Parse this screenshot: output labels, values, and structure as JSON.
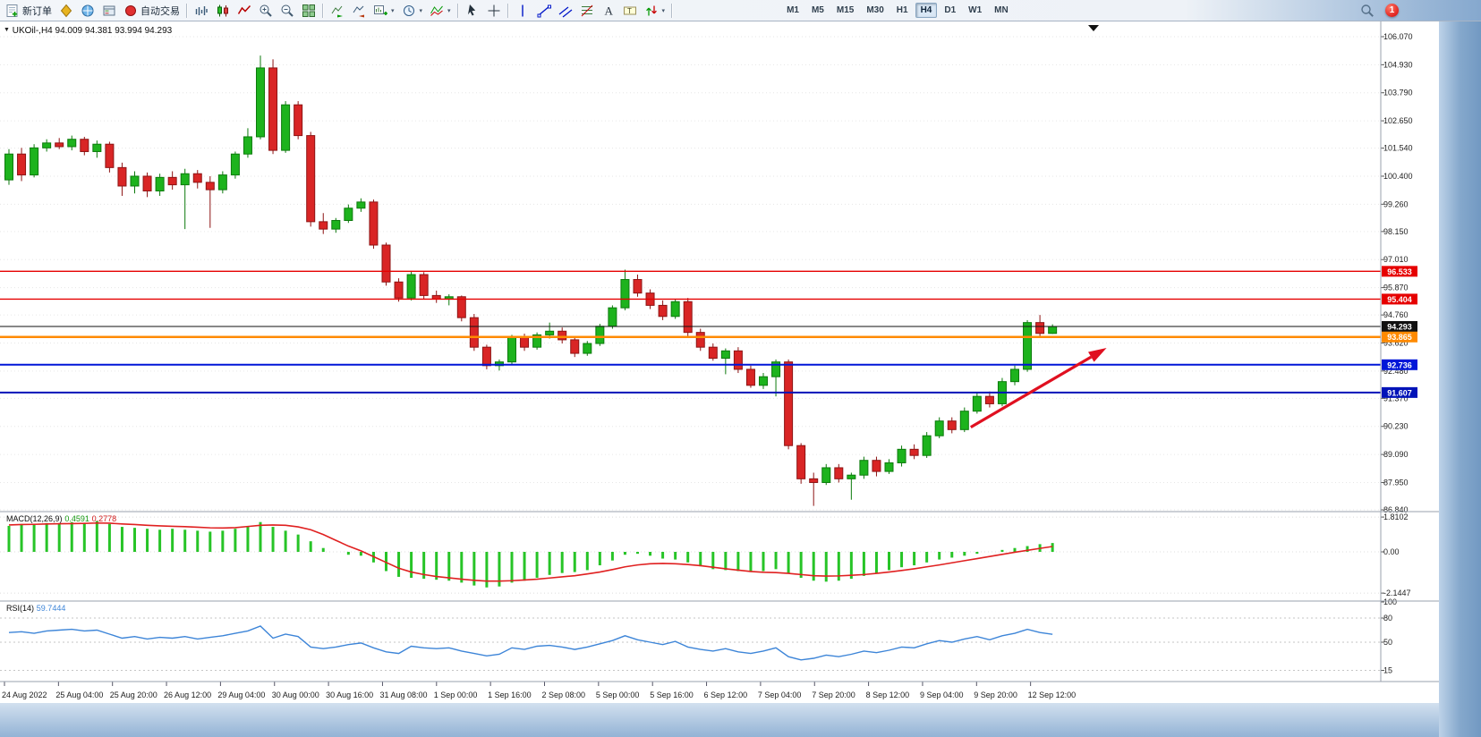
{
  "toolbar": {
    "new_order_label": "新订单",
    "auto_trading_label": "自动交易",
    "timeframes": [
      "M1",
      "M5",
      "M15",
      "M30",
      "H1",
      "H4",
      "D1",
      "W1",
      "MN"
    ],
    "active_timeframe": "H4",
    "notification_count": "1"
  },
  "chart": {
    "collapse_arrow": "▼",
    "symbol_period": "UKOil-,H4",
    "ohlc_text": "94.009 94.381 93.994 94.293"
  },
  "chart_data": {
    "type": "candlestick",
    "symbol": "UKOil-",
    "period": "H4",
    "title": "UKOil-,H4",
    "current_bar": {
      "open": 94.009,
      "high": 94.381,
      "low": 93.994,
      "close": 94.293
    },
    "price_range": [
      86.84,
      106.07
    ],
    "price_axis_labels": [
      "106.070",
      "104.930",
      "103.790",
      "102.650",
      "101.540",
      "100.400",
      "99.260",
      "98.150",
      "97.010",
      "95.870",
      "94.760",
      "93.620",
      "92.480",
      "91.370",
      "90.230",
      "89.090",
      "87.950",
      "86.840"
    ],
    "candles": [
      [
        100.25,
        101.5,
        100.05,
        101.3
      ],
      [
        101.3,
        101.55,
        100.2,
        100.45
      ],
      [
        100.45,
        101.7,
        100.35,
        101.55
      ],
      [
        101.55,
        101.9,
        101.4,
        101.75
      ],
      [
        101.75,
        101.95,
        101.5,
        101.6
      ],
      [
        101.6,
        102.05,
        101.45,
        101.9
      ],
      [
        101.9,
        102.0,
        101.25,
        101.4
      ],
      [
        101.4,
        101.85,
        101.15,
        101.7
      ],
      [
        101.7,
        101.8,
        100.55,
        100.75
      ],
      [
        100.75,
        100.95,
        99.6,
        100.0
      ],
      [
        100.0,
        100.6,
        99.7,
        100.4
      ],
      [
        100.4,
        100.55,
        99.55,
        99.8
      ],
      [
        99.8,
        100.5,
        99.6,
        100.35
      ],
      [
        100.35,
        100.6,
        99.85,
        100.05
      ],
      [
        100.05,
        100.7,
        98.25,
        100.5
      ],
      [
        100.5,
        100.65,
        99.9,
        100.15
      ],
      [
        100.15,
        100.4,
        98.3,
        99.85
      ],
      [
        99.85,
        100.6,
        99.7,
        100.45
      ],
      [
        100.45,
        101.4,
        100.3,
        101.3
      ],
      [
        101.3,
        102.35,
        101.15,
        102.0
      ],
      [
        102.0,
        105.3,
        101.9,
        104.8
      ],
      [
        104.8,
        105.15,
        101.3,
        101.45
      ],
      [
        101.45,
        103.45,
        101.35,
        103.3
      ],
      [
        103.3,
        103.45,
        101.9,
        102.05
      ],
      [
        102.05,
        102.2,
        98.35,
        98.55
      ],
      [
        98.55,
        98.9,
        98.05,
        98.25
      ],
      [
        98.25,
        98.7,
        98.1,
        98.6
      ],
      [
        98.6,
        99.25,
        98.5,
        99.1
      ],
      [
        99.1,
        99.5,
        98.95,
        99.35
      ],
      [
        99.35,
        99.45,
        97.45,
        97.6
      ],
      [
        97.6,
        97.7,
        95.95,
        96.1
      ],
      [
        96.1,
        96.25,
        95.3,
        95.45
      ],
      [
        95.45,
        96.55,
        95.35,
        96.4
      ],
      [
        96.4,
        96.5,
        95.4,
        95.55
      ],
      [
        95.55,
        95.75,
        95.25,
        95.4
      ],
      [
        95.4,
        95.6,
        95.15,
        95.5
      ],
      [
        95.5,
        95.55,
        94.5,
        94.65
      ],
      [
        94.65,
        94.8,
        93.3,
        93.45
      ],
      [
        93.45,
        93.55,
        92.55,
        92.7
      ],
      [
        92.7,
        92.95,
        92.5,
        92.85
      ],
      [
        92.85,
        93.95,
        92.75,
        93.85
      ],
      [
        93.85,
        94.0,
        93.3,
        93.45
      ],
      [
        93.45,
        94.05,
        93.35,
        93.95
      ],
      [
        93.95,
        94.45,
        93.8,
        94.1
      ],
      [
        94.1,
        94.25,
        93.6,
        93.75
      ],
      [
        93.75,
        93.9,
        93.05,
        93.2
      ],
      [
        93.2,
        93.7,
        93.1,
        93.6
      ],
      [
        93.6,
        94.4,
        93.5,
        94.3
      ],
      [
        94.3,
        95.15,
        94.2,
        95.05
      ],
      [
        95.05,
        96.6,
        94.95,
        96.2
      ],
      [
        96.2,
        96.4,
        95.5,
        95.65
      ],
      [
        95.65,
        95.8,
        95.0,
        95.15
      ],
      [
        95.15,
        95.35,
        94.55,
        94.7
      ],
      [
        94.7,
        95.4,
        94.6,
        95.3
      ],
      [
        95.3,
        95.45,
        93.9,
        94.05
      ],
      [
        94.05,
        94.2,
        93.3,
        93.45
      ],
      [
        93.45,
        93.6,
        92.9,
        93.0
      ],
      [
        93.0,
        93.4,
        92.35,
        93.3
      ],
      [
        93.3,
        93.45,
        92.4,
        92.55
      ],
      [
        92.55,
        92.7,
        91.8,
        91.9
      ],
      [
        91.9,
        92.4,
        91.75,
        92.25
      ],
      [
        92.25,
        92.95,
        91.45,
        92.85
      ],
      [
        92.85,
        92.95,
        89.3,
        89.45
      ],
      [
        89.45,
        89.55,
        87.9,
        88.1
      ],
      [
        88.1,
        88.35,
        87.0,
        87.95
      ],
      [
        87.95,
        88.7,
        87.85,
        88.55
      ],
      [
        88.55,
        88.7,
        87.95,
        88.1
      ],
      [
        88.1,
        88.35,
        87.25,
        88.25
      ],
      [
        88.25,
        89.0,
        88.1,
        88.85
      ],
      [
        88.85,
        89.0,
        88.2,
        88.4
      ],
      [
        88.4,
        88.9,
        88.3,
        88.75
      ],
      [
        88.75,
        89.45,
        88.6,
        89.3
      ],
      [
        89.3,
        89.5,
        88.9,
        89.05
      ],
      [
        89.05,
        90.0,
        88.95,
        89.85
      ],
      [
        89.85,
        90.6,
        89.75,
        90.45
      ],
      [
        90.45,
        90.6,
        89.95,
        90.1
      ],
      [
        90.1,
        91.0,
        90.0,
        90.85
      ],
      [
        90.85,
        91.6,
        90.75,
        91.45
      ],
      [
        91.45,
        91.65,
        91.0,
        91.15
      ],
      [
        91.15,
        92.2,
        91.05,
        92.05
      ],
      [
        92.05,
        92.7,
        91.9,
        92.55
      ],
      [
        92.55,
        94.55,
        92.45,
        94.45
      ],
      [
        94.45,
        94.76,
        93.9,
        94.01
      ],
      [
        94.01,
        94.38,
        93.99,
        94.29
      ]
    ],
    "levels": [
      {
        "price": 96.533,
        "label": "96.533",
        "color": "#e60000",
        "width": 1.4
      },
      {
        "price": 95.404,
        "label": "95.404",
        "color": "#e60000",
        "width": 1.4
      },
      {
        "price": 94.293,
        "label": "94.293",
        "color": "#111111",
        "width": 1
      },
      {
        "price": 93.865,
        "label": "93.865",
        "color": "#ff8a00",
        "width": 2.6
      },
      {
        "price": 92.736,
        "label": "92.736",
        "color": "#0016d8",
        "width": 2
      },
      {
        "price": 91.607,
        "label": "91.607",
        "color": "#0013b8",
        "width": 2
      }
    ],
    "trend_arrow": {
      "from": {
        "bar": 76.5,
        "price": 90.2
      },
      "to": {
        "bar": 87.3,
        "price": 93.42
      },
      "color": "#e01020"
    },
    "macd": {
      "name": "MACD(12,26,9)",
      "main_value": "0.4591",
      "signal_value": "0.2778",
      "axis_labels": [
        "1.8102",
        "0.00",
        "-2.1447"
      ],
      "axis_values": [
        1.8102,
        0,
        -2.1447
      ],
      "histogram": [
        1.35,
        1.45,
        1.4,
        1.5,
        1.45,
        1.55,
        1.5,
        1.6,
        1.45,
        1.3,
        1.25,
        1.2,
        1.15,
        1.2,
        1.15,
        1.1,
        1.05,
        1.1,
        1.2,
        1.35,
        1.55,
        1.3,
        1.1,
        0.9,
        0.55,
        0.2,
        0.0,
        -0.15,
        -0.2,
        -0.55,
        -1.0,
        -1.3,
        -1.35,
        -1.4,
        -1.45,
        -1.5,
        -1.6,
        -1.75,
        -1.85,
        -1.8,
        -1.6,
        -1.5,
        -1.35,
        -1.2,
        -1.1,
        -1.05,
        -0.95,
        -0.7,
        -0.45,
        -0.15,
        -0.1,
        -0.2,
        -0.35,
        -0.4,
        -0.55,
        -0.75,
        -0.9,
        -0.95,
        -1.0,
        -1.05,
        -1.0,
        -0.9,
        -1.1,
        -1.35,
        -1.5,
        -1.55,
        -1.5,
        -1.4,
        -1.25,
        -1.1,
        -0.95,
        -0.8,
        -0.7,
        -0.55,
        -0.4,
        -0.3,
        -0.2,
        -0.1,
        0.0,
        0.1,
        0.2,
        0.3,
        0.4,
        0.46
      ],
      "signal": [
        1.4,
        1.42,
        1.43,
        1.45,
        1.46,
        1.47,
        1.48,
        1.5,
        1.49,
        1.45,
        1.42,
        1.38,
        1.35,
        1.33,
        1.31,
        1.28,
        1.25,
        1.24,
        1.26,
        1.32,
        1.38,
        1.4,
        1.38,
        1.3,
        1.15,
        0.9,
        0.6,
        0.3,
        0.05,
        -0.25,
        -0.55,
        -0.85,
        -1.05,
        -1.18,
        -1.28,
        -1.35,
        -1.42,
        -1.48,
        -1.52,
        -1.52,
        -1.5,
        -1.46,
        -1.42,
        -1.36,
        -1.3,
        -1.24,
        -1.15,
        -1.05,
        -0.92,
        -0.78,
        -0.68,
        -0.62,
        -0.6,
        -0.62,
        -0.66,
        -0.72,
        -0.8,
        -0.88,
        -0.95,
        -1.02,
        -1.06,
        -1.08,
        -1.12,
        -1.18,
        -1.24,
        -1.26,
        -1.25,
        -1.22,
        -1.18,
        -1.12,
        -1.05,
        -0.97,
        -0.88,
        -0.78,
        -0.68,
        -0.57,
        -0.46,
        -0.35,
        -0.24,
        -0.13,
        -0.02,
        0.08,
        0.18,
        0.28
      ]
    },
    "rsi": {
      "name": "RSI(14)",
      "value": "59.7444",
      "axis_labels": [
        "100",
        "80",
        "50",
        "15"
      ],
      "axis_values": [
        100,
        80,
        50,
        15
      ],
      "series": [
        62,
        63,
        61,
        64,
        65,
        66,
        64,
        65,
        60,
        55,
        57,
        54,
        56,
        55,
        57,
        54,
        56,
        58,
        61,
        64,
        70,
        55,
        60,
        57,
        44,
        42,
        44,
        47,
        49,
        43,
        38,
        36,
        45,
        43,
        42,
        43,
        39,
        36,
        33,
        35,
        43,
        41,
        45,
        46,
        44,
        41,
        44,
        48,
        52,
        58,
        53,
        50,
        47,
        51,
        44,
        41,
        39,
        42,
        38,
        36,
        39,
        43,
        32,
        28,
        30,
        34,
        32,
        35,
        39,
        37,
        40,
        44,
        43,
        48,
        52,
        50,
        54,
        57,
        53,
        58,
        61,
        66,
        62,
        59.74
      ]
    },
    "time_labels": [
      "24 Aug 2022",
      "25 Aug 04:00",
      "25 Aug 20:00",
      "26 Aug 12:00",
      "29 Aug 04:00",
      "30 Aug 00:00",
      "30 Aug 16:00",
      "31 Aug 08:00",
      "1 Sep 00:00",
      "1 Sep 16:00",
      "2 Sep 08:00",
      "5 Sep 00:00",
      "5 Sep 16:00",
      "6 Sep 12:00",
      "7 Sep 04:00",
      "7 Sep 20:00",
      "8 Sep 12:00",
      "9 Sep 04:00",
      "9 Sep 20:00",
      "12 Sep 12:00"
    ]
  }
}
